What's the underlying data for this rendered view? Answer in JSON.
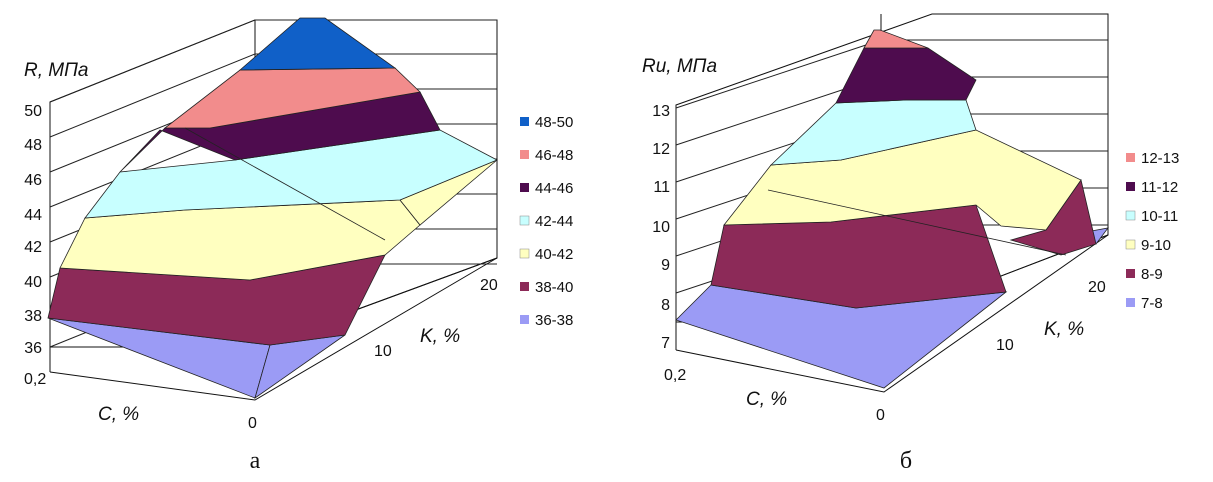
{
  "chart_data": [
    {
      "type": "surface",
      "caption": "а",
      "zlabel": "R, МПа",
      "xlabel": "C, %",
      "ylabel": "K, %",
      "x_ticks": [
        "0,2",
        "0"
      ],
      "y_ticks": [
        "10",
        "20"
      ],
      "z_ticks": [
        "36",
        "38",
        "40",
        "42",
        "44",
        "46",
        "48",
        "50"
      ],
      "zlim": [
        36,
        50
      ],
      "grid": true,
      "legend_position": "right",
      "bands": [
        {
          "label": "48-50",
          "color": "#1060c8"
        },
        {
          "label": "46-48",
          "color": "#f28c8c"
        },
        {
          "label": "44-46",
          "color": "#4e0c4e"
        },
        {
          "label": "42-44",
          "color": "#c8ffff"
        },
        {
          "label": "40-42",
          "color": "#ffffc0"
        },
        {
          "label": "38-40",
          "color": "#8c2a58"
        },
        {
          "label": "36-38",
          "color": "#9b9bf5"
        }
      ]
    },
    {
      "type": "surface",
      "caption": "б",
      "zlabel": "Rи, МПа",
      "xlabel": "C, %",
      "ylabel": "K, %",
      "x_ticks": [
        "0,2",
        "0"
      ],
      "y_ticks": [
        "10",
        "20"
      ],
      "z_ticks": [
        "7",
        "8",
        "9",
        "10",
        "11",
        "12",
        "13"
      ],
      "zlim": [
        7,
        13
      ],
      "grid": true,
      "legend_position": "right",
      "bands": [
        {
          "label": "12-13",
          "color": "#f28c8c"
        },
        {
          "label": "11-12",
          "color": "#4e0c4e"
        },
        {
          "label": "10-11",
          "color": "#c8ffff"
        },
        {
          "label": "9-10",
          "color": "#ffffc0"
        },
        {
          "label": "8-9",
          "color": "#8c2a58"
        },
        {
          "label": "7-8",
          "color": "#9b9bf5"
        }
      ]
    }
  ]
}
